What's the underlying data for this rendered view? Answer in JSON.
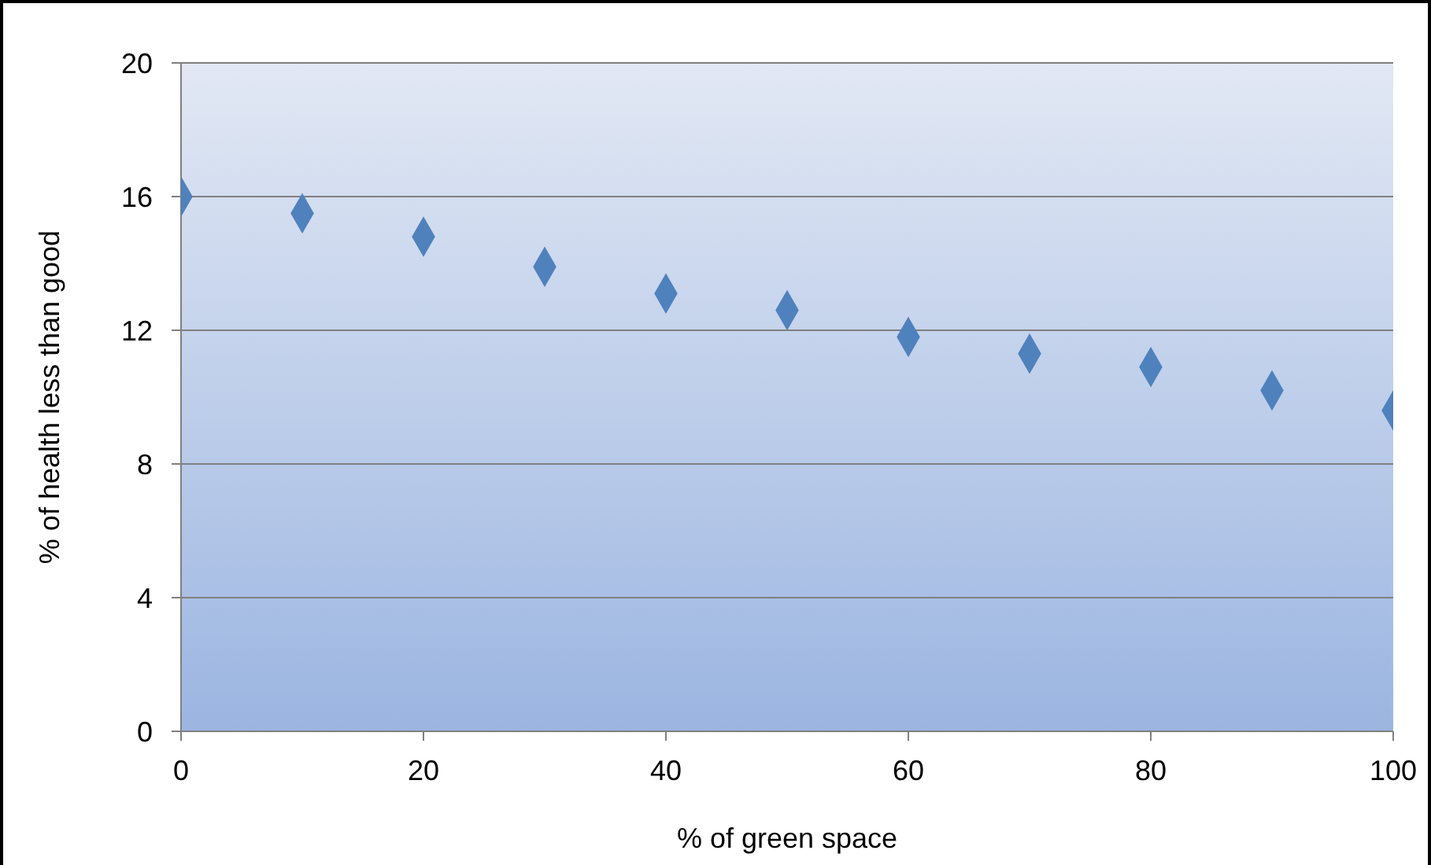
{
  "chart_data": {
    "type": "scatter",
    "xlabel": "% of green space",
    "ylabel": "% of health less than good",
    "x": [
      0,
      10,
      20,
      30,
      40,
      50,
      60,
      70,
      80,
      90,
      100
    ],
    "series": [
      {
        "color": "#4f81bd",
        "values": [
          16,
          15.5,
          14.8,
          13.9,
          13.1,
          12.6,
          11.8,
          11.3,
          10.9,
          10.2,
          9.6
        ]
      }
    ],
    "xlim": [
      0,
      100
    ],
    "xticks": [
      0,
      20,
      40,
      60,
      80,
      100
    ],
    "ylim": [
      0,
      20
    ],
    "yticks": [
      0,
      4,
      8,
      12,
      16,
      20
    ],
    "grid": "y",
    "marker": "diamond",
    "legend": false
  }
}
